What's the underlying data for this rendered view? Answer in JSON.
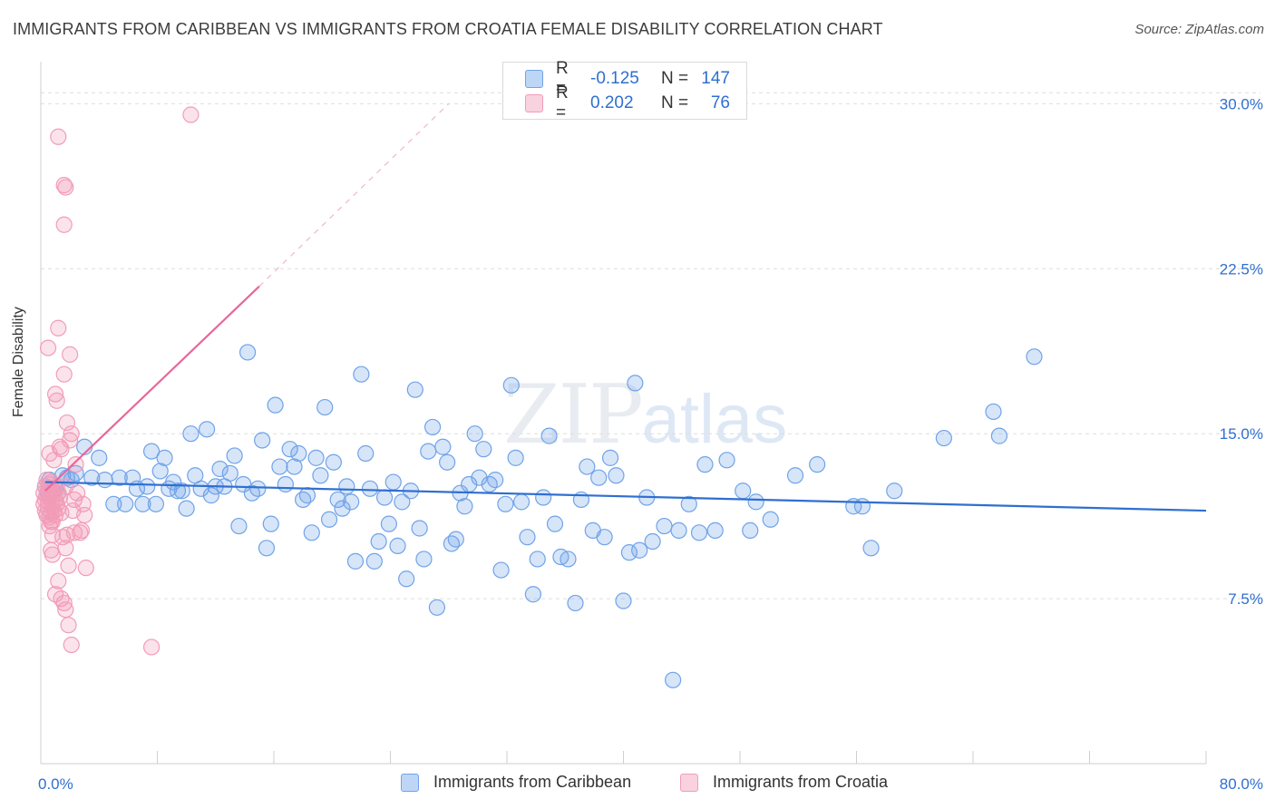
{
  "title": "IMMIGRANTS FROM CARIBBEAN VS IMMIGRANTS FROM CROATIA FEMALE DISABILITY CORRELATION CHART",
  "source": "Source: ZipAtlas.com",
  "watermark": {
    "zip": "ZIP",
    "atlas": "atlas"
  },
  "legend": {
    "rows": [
      {
        "r_label": "R =",
        "r_value": "-0.125",
        "n_label": "N =",
        "n_value": "147",
        "color": "#6fa3e8"
      },
      {
        "r_label": "R =",
        "r_value": "0.202",
        "n_label": "N =",
        "n_value": "76",
        "color": "#f29cb8"
      }
    ]
  },
  "chart_data": {
    "type": "scatter",
    "title": "IMMIGRANTS FROM CARIBBEAN VS IMMIGRANTS FROM CROATIA FEMALE DISABILITY CORRELATION CHART",
    "xlabel": "",
    "ylabel": "Female Disability",
    "xlim": [
      0,
      80
    ],
    "ylim": [
      0,
      31.5
    ],
    "x_tick_labels": [
      "0.0%",
      "80.0%"
    ],
    "y_ticks": [
      7.5,
      15.0,
      22.5,
      30.0
    ],
    "y_tick_labels": [
      "7.5%",
      "15.0%",
      "22.5%",
      "30.0%"
    ],
    "grid": true,
    "legend_position": "bottom-center",
    "series": [
      {
        "name": "Immigrants from Caribbean",
        "color": "#6fa3e8",
        "line_color": "#2f6fd0",
        "trend": {
          "x0": 0.3,
          "y0": 12.8,
          "x1": 80,
          "y1": 11.5
        },
        "points": [
          [
            0.3,
            12.6
          ],
          [
            0.5,
            12.3
          ],
          [
            0.6,
            12.9
          ],
          [
            0.8,
            12.4
          ],
          [
            1.0,
            12.5
          ],
          [
            1.2,
            12.3
          ],
          [
            1.5,
            13.1
          ],
          [
            1.8,
            13.0
          ],
          [
            2.1,
            12.9
          ],
          [
            2.4,
            13.2
          ],
          [
            3.0,
            14.4
          ],
          [
            3.5,
            13.0
          ],
          [
            4.0,
            13.9
          ],
          [
            4.4,
            12.9
          ],
          [
            5.0,
            11.8
          ],
          [
            5.4,
            13.0
          ],
          [
            5.8,
            11.8
          ],
          [
            6.3,
            13.0
          ],
          [
            6.6,
            12.5
          ],
          [
            7.0,
            11.8
          ],
          [
            7.3,
            12.6
          ],
          [
            7.6,
            14.2
          ],
          [
            7.9,
            11.8
          ],
          [
            8.2,
            13.3
          ],
          [
            8.5,
            13.9
          ],
          [
            8.8,
            12.5
          ],
          [
            9.1,
            12.8
          ],
          [
            9.4,
            12.4
          ],
          [
            9.7,
            12.4
          ],
          [
            10.0,
            11.6
          ],
          [
            10.3,
            15.0
          ],
          [
            10.6,
            13.1
          ],
          [
            11.0,
            12.5
          ],
          [
            11.4,
            15.2
          ],
          [
            11.7,
            12.2
          ],
          [
            12.0,
            12.6
          ],
          [
            12.3,
            13.4
          ],
          [
            12.6,
            12.6
          ],
          [
            13.0,
            13.2
          ],
          [
            13.3,
            14.0
          ],
          [
            13.6,
            10.8
          ],
          [
            13.9,
            12.7
          ],
          [
            14.2,
            18.7
          ],
          [
            14.5,
            12.3
          ],
          [
            14.9,
            12.5
          ],
          [
            15.2,
            14.7
          ],
          [
            15.5,
            9.8
          ],
          [
            15.8,
            10.9
          ],
          [
            16.1,
            16.3
          ],
          [
            16.4,
            13.5
          ],
          [
            16.8,
            12.7
          ],
          [
            17.1,
            14.3
          ],
          [
            17.4,
            13.5
          ],
          [
            17.7,
            14.1
          ],
          [
            18.0,
            12.0
          ],
          [
            18.3,
            12.2
          ],
          [
            18.6,
            10.5
          ],
          [
            18.9,
            13.9
          ],
          [
            19.2,
            13.1
          ],
          [
            19.5,
            16.2
          ],
          [
            19.8,
            11.1
          ],
          [
            20.1,
            13.7
          ],
          [
            20.4,
            12.0
          ],
          [
            20.7,
            11.6
          ],
          [
            21.0,
            12.6
          ],
          [
            21.3,
            11.9
          ],
          [
            21.6,
            9.2
          ],
          [
            22.0,
            17.7
          ],
          [
            22.3,
            14.1
          ],
          [
            22.6,
            12.5
          ],
          [
            22.9,
            9.2
          ],
          [
            23.2,
            10.1
          ],
          [
            23.6,
            12.1
          ],
          [
            23.9,
            10.9
          ],
          [
            24.2,
            12.8
          ],
          [
            24.5,
            9.9
          ],
          [
            24.8,
            11.9
          ],
          [
            25.1,
            8.4
          ],
          [
            25.4,
            12.4
          ],
          [
            25.7,
            17.0
          ],
          [
            26.0,
            10.7
          ],
          [
            26.3,
            9.3
          ],
          [
            26.6,
            14.2
          ],
          [
            26.9,
            15.3
          ],
          [
            27.2,
            7.1
          ],
          [
            27.6,
            14.4
          ],
          [
            27.9,
            13.7
          ],
          [
            28.2,
            10.0
          ],
          [
            28.5,
            10.2
          ],
          [
            28.8,
            12.3
          ],
          [
            29.1,
            11.7
          ],
          [
            29.4,
            12.7
          ],
          [
            29.8,
            15.0
          ],
          [
            30.1,
            13.0
          ],
          [
            30.4,
            14.3
          ],
          [
            30.8,
            12.7
          ],
          [
            31.2,
            12.9
          ],
          [
            31.6,
            8.8
          ],
          [
            31.9,
            11.8
          ],
          [
            32.3,
            17.2
          ],
          [
            32.6,
            13.9
          ],
          [
            33.0,
            11.9
          ],
          [
            33.4,
            10.3
          ],
          [
            33.8,
            7.7
          ],
          [
            34.1,
            9.3
          ],
          [
            34.5,
            12.1
          ],
          [
            34.9,
            14.9
          ],
          [
            35.3,
            10.9
          ],
          [
            35.7,
            9.4
          ],
          [
            36.2,
            9.3
          ],
          [
            36.7,
            7.3
          ],
          [
            37.1,
            12.0
          ],
          [
            37.5,
            13.5
          ],
          [
            37.9,
            10.6
          ],
          [
            38.3,
            13.0
          ],
          [
            38.7,
            10.3
          ],
          [
            39.1,
            13.9
          ],
          [
            39.5,
            13.1
          ],
          [
            40.0,
            7.4
          ],
          [
            40.4,
            9.6
          ],
          [
            40.8,
            17.3
          ],
          [
            41.1,
            9.7
          ],
          [
            41.6,
            12.1
          ],
          [
            42.0,
            10.1
          ],
          [
            42.8,
            10.8
          ],
          [
            43.4,
            3.8
          ],
          [
            43.8,
            10.6
          ],
          [
            44.5,
            11.8
          ],
          [
            45.2,
            10.5
          ],
          [
            45.6,
            13.6
          ],
          [
            46.3,
            10.6
          ],
          [
            47.1,
            13.8
          ],
          [
            48.2,
            12.4
          ],
          [
            48.7,
            10.6
          ],
          [
            49.1,
            11.9
          ],
          [
            50.1,
            11.1
          ],
          [
            51.8,
            13.1
          ],
          [
            53.3,
            13.6
          ],
          [
            55.8,
            11.7
          ],
          [
            56.4,
            11.7
          ],
          [
            57.0,
            9.8
          ],
          [
            58.6,
            12.4
          ],
          [
            62.0,
            14.8
          ],
          [
            65.4,
            16.0
          ],
          [
            65.8,
            14.9
          ],
          [
            68.2,
            18.5
          ],
          [
            0.9,
            12.4
          ]
        ]
      },
      {
        "name": "Immigrants from Croatia",
        "color": "#f29cb8",
        "line_color": "#e8679a",
        "trend": {
          "x0": 0.3,
          "y0": 12.4,
          "x1": 15.0,
          "y1": 21.7,
          "dash_x1": 28.0,
          "dash_y1": 30.0
        },
        "points": [
          [
            0.2,
            12.3
          ],
          [
            0.2,
            11.8
          ],
          [
            0.3,
            12.0
          ],
          [
            0.3,
            11.5
          ],
          [
            0.3,
            12.6
          ],
          [
            0.4,
            12.9
          ],
          [
            0.4,
            11.3
          ],
          [
            0.4,
            12.2
          ],
          [
            0.5,
            11.9
          ],
          [
            0.5,
            12.4
          ],
          [
            0.5,
            11.6
          ],
          [
            0.6,
            12.7
          ],
          [
            0.6,
            12.1
          ],
          [
            0.6,
            11.2
          ],
          [
            0.7,
            12.5
          ],
          [
            0.7,
            11.4
          ],
          [
            0.7,
            12.8
          ],
          [
            0.8,
            11.7
          ],
          [
            0.8,
            12.2
          ],
          [
            0.8,
            11.0
          ],
          [
            0.9,
            12.4
          ],
          [
            0.9,
            11.5
          ],
          [
            1.0,
            12.0
          ],
          [
            1.0,
            11.3
          ],
          [
            1.1,
            12.6
          ],
          [
            1.1,
            11.8
          ],
          [
            1.2,
            12.3
          ],
          [
            1.2,
            11.6
          ],
          [
            1.3,
            12.1
          ],
          [
            1.4,
            11.4
          ],
          [
            0.5,
            18.9
          ],
          [
            0.6,
            10.8
          ],
          [
            0.7,
            9.7
          ],
          [
            0.8,
            10.4
          ],
          [
            0.9,
            13.8
          ],
          [
            1.0,
            16.8
          ],
          [
            1.1,
            16.5
          ],
          [
            1.2,
            19.8
          ],
          [
            1.3,
            14.4
          ],
          [
            1.4,
            14.3
          ],
          [
            1.5,
            10.3
          ],
          [
            1.6,
            17.7
          ],
          [
            1.7,
            9.8
          ],
          [
            1.8,
            10.4
          ],
          [
            1.9,
            9.0
          ],
          [
            2.0,
            18.6
          ],
          [
            2.1,
            15.0
          ],
          [
            2.2,
            11.5
          ],
          [
            2.3,
            10.5
          ],
          [
            2.4,
            13.6
          ],
          [
            0.6,
            14.1
          ],
          [
            0.7,
            11.0
          ],
          [
            0.8,
            9.5
          ],
          [
            1.0,
            7.7
          ],
          [
            1.2,
            8.3
          ],
          [
            1.4,
            7.5
          ],
          [
            1.6,
            7.3
          ],
          [
            1.7,
            7.0
          ],
          [
            1.9,
            6.3
          ],
          [
            2.1,
            5.4
          ],
          [
            1.2,
            28.5
          ],
          [
            1.6,
            26.3
          ],
          [
            1.7,
            26.2
          ],
          [
            1.6,
            24.5
          ],
          [
            1.7,
            12.6
          ],
          [
            2.0,
            14.7
          ],
          [
            2.3,
            12.0
          ],
          [
            2.5,
            12.3
          ],
          [
            2.7,
            10.5
          ],
          [
            2.8,
            10.6
          ],
          [
            2.9,
            11.8
          ],
          [
            3.0,
            11.3
          ],
          [
            3.1,
            8.9
          ],
          [
            7.6,
            5.3
          ],
          [
            10.3,
            29.5
          ],
          [
            1.8,
            15.5
          ]
        ]
      }
    ]
  },
  "bottom_legend": [
    {
      "label": "Immigrants from Caribbean",
      "color": "#6fa3e8"
    },
    {
      "label": "Immigrants from Croatia",
      "color": "#f29cb8"
    }
  ]
}
